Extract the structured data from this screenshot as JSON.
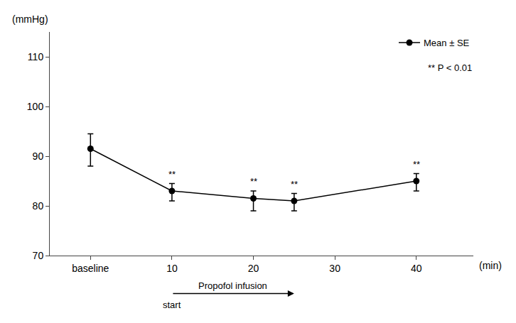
{
  "chart_data": {
    "type": "line",
    "x": [
      0,
      10,
      20,
      25,
      40
    ],
    "series": [
      {
        "name": "Mean ± SE",
        "color": "#000000",
        "marker": "circle",
        "line_style": "solid",
        "values": [
          91.5,
          83.0,
          81.5,
          81.0,
          85.0
        ],
        "error_plus": [
          3.0,
          1.5,
          1.5,
          1.5,
          1.5
        ],
        "error_minus": [
          3.5,
          2.0,
          2.5,
          2.0,
          2.0
        ],
        "significance": [
          false,
          true,
          true,
          true,
          true
        ]
      }
    ],
    "significance_label": "**",
    "xlabel": "(min)",
    "ylabel": "(mmHg)",
    "xlim": [
      -5,
      47
    ],
    "xticks": [
      {
        "value": 0,
        "label": "baseline"
      },
      10,
      20,
      30,
      40
    ],
    "ylim": [
      70,
      115
    ],
    "yticks": [
      70,
      80,
      90,
      100,
      110
    ],
    "grid": false,
    "legend": "upper right",
    "annotations": [
      {
        "text": "** P < 0.01"
      },
      {
        "text": "Propofol infusion",
        "x_start": 10,
        "x_end": 25
      },
      {
        "text": "start",
        "x": 10
      }
    ]
  }
}
